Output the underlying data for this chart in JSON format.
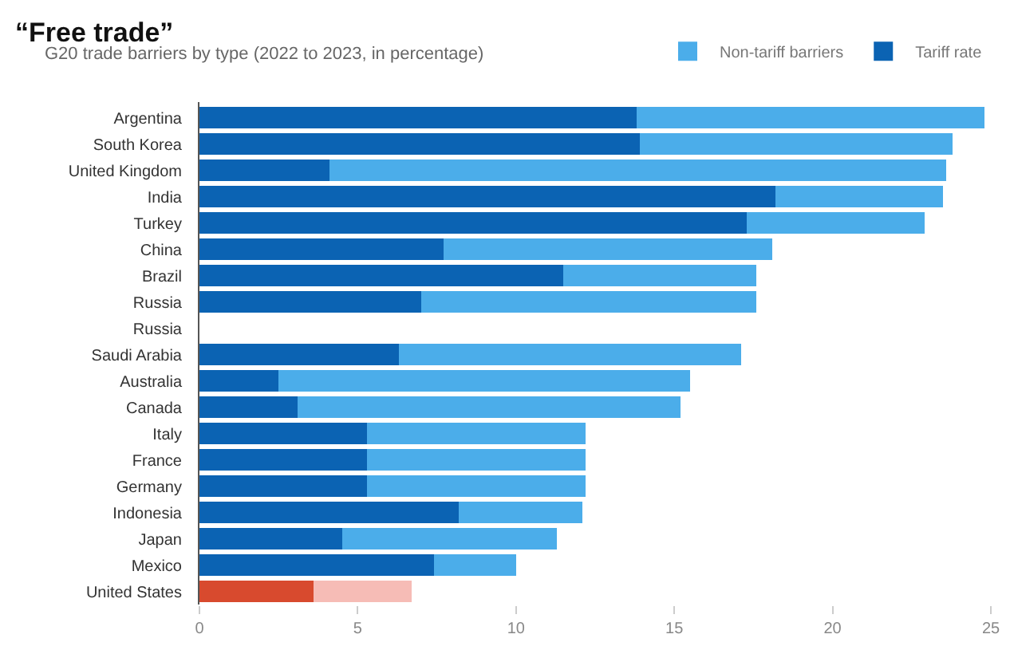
{
  "chart_data": {
    "type": "bar",
    "orientation": "horizontal",
    "stacked": true,
    "title": "“Free trade”",
    "subtitle": "G20 trade barriers by type (2022 to 2023, in percentage)",
    "categories": [
      "Argentina",
      "South Korea",
      "United Kingdom",
      "India",
      "Turkey",
      "China",
      "Brazil",
      "Russia",
      "Russia",
      "Saudi Arabia",
      "Australia",
      "Canada",
      "Italy",
      "France",
      "Germany",
      "Indonesia",
      "Japan",
      "Mexico",
      "United States"
    ],
    "series": [
      {
        "name": "Tariff rate",
        "color": "#0b63b3",
        "colors": [
          "#0b63b3",
          "#0b63b3",
          "#0b63b3",
          "#0b63b3",
          "#0b63b3",
          "#0b63b3",
          "#0b63b3",
          "#0b63b3",
          "#0b63b3",
          "#0b63b3",
          "#0b63b3",
          "#0b63b3",
          "#0b63b3",
          "#0b63b3",
          "#0b63b3",
          "#0b63b3",
          "#0b63b3",
          "#0b63b3",
          "#d84a2e"
        ],
        "values": [
          13.8,
          13.9,
          4.1,
          18.2,
          17.3,
          7.7,
          11.5,
          7.0,
          null,
          6.3,
          2.5,
          3.1,
          5.3,
          5.3,
          5.3,
          8.2,
          4.5,
          7.4,
          3.6
        ]
      },
      {
        "name": "Non-tariff barriers",
        "color": "#4badea",
        "colors": [
          "#4badea",
          "#4badea",
          "#4badea",
          "#4badea",
          "#4badea",
          "#4badea",
          "#4badea",
          "#4badea",
          "#4badea",
          "#4badea",
          "#4badea",
          "#4badea",
          "#4badea",
          "#4badea",
          "#4badea",
          "#4badea",
          "#4badea",
          "#4badea",
          "#f6bcb6"
        ],
        "values": [
          11.0,
          9.9,
          19.5,
          5.3,
          5.6,
          10.4,
          6.1,
          10.6,
          null,
          10.8,
          13.0,
          12.1,
          6.9,
          6.9,
          6.9,
          3.9,
          6.8,
          2.6,
          3.1
        ]
      }
    ],
    "xlim": [
      0,
      25
    ],
    "xticks": [
      0,
      5,
      10,
      15,
      20,
      25
    ],
    "grid": false,
    "legend": "top right"
  }
}
